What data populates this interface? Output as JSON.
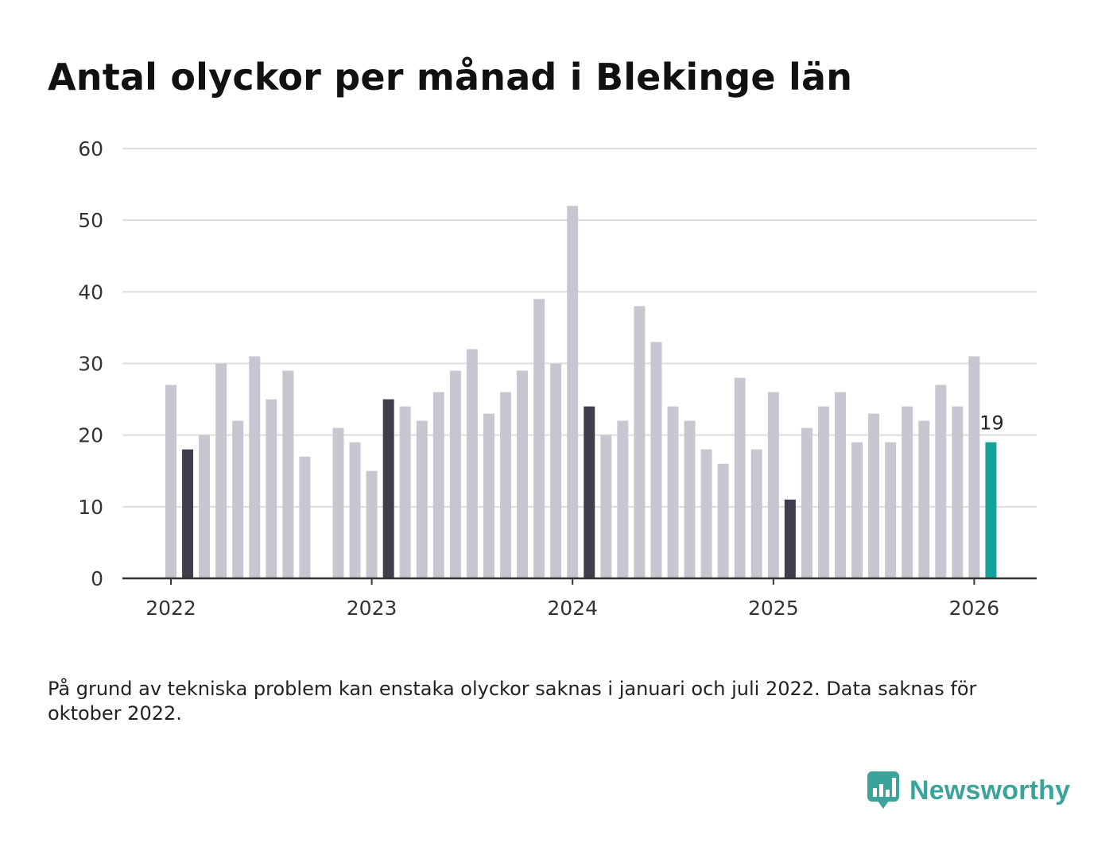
{
  "title": "Antal olyckor per månad i Blekinge län",
  "note": "På grund av tekniska problem kan enstaka olyckor saknas i januari och juli 2022. Data saknas för oktober 2022.",
  "brand": {
    "name": "Newsworthy",
    "icon": "newsworthy-logo-icon",
    "color": "#3aa49a"
  },
  "colors": {
    "bar_default": "#c8c7d1",
    "bar_highlight": "#3e3e4c",
    "bar_latest": "#13a39a",
    "grid": "#dddddd",
    "baseline": "#333333"
  },
  "chart_data": {
    "type": "bar",
    "title": "Antal olyckor per månad i Blekinge län",
    "xlabel": "",
    "ylabel": "",
    "ylim": [
      0,
      60
    ],
    "yticks": [
      0,
      10,
      20,
      30,
      40,
      50,
      60
    ],
    "grid": true,
    "xticks": [
      {
        "label": "2022",
        "month_index": 0
      },
      {
        "label": "2023",
        "month_index": 12
      },
      {
        "label": "2024",
        "month_index": 24
      },
      {
        "label": "2025",
        "month_index": 36
      },
      {
        "label": "2026",
        "month_index": 48
      }
    ],
    "highlight_note": "February of each year is highlighted dark; the latest month is highlighted teal and labelled",
    "last_value_label": "19",
    "categories": [
      "2022-01",
      "2022-02",
      "2022-03",
      "2022-04",
      "2022-05",
      "2022-06",
      "2022-07",
      "2022-08",
      "2022-09",
      "2022-10",
      "2022-11",
      "2022-12",
      "2023-01",
      "2023-02",
      "2023-03",
      "2023-04",
      "2023-05",
      "2023-06",
      "2023-07",
      "2023-08",
      "2023-09",
      "2023-10",
      "2023-11",
      "2023-12",
      "2024-01",
      "2024-02",
      "2024-03",
      "2024-04",
      "2024-05",
      "2024-06",
      "2024-07",
      "2024-08",
      "2024-09",
      "2024-10",
      "2024-11",
      "2024-12",
      "2025-01",
      "2025-02",
      "2025-03",
      "2025-04",
      "2025-05",
      "2025-06",
      "2025-07",
      "2025-08",
      "2025-09",
      "2025-10",
      "2025-11",
      "2025-12",
      "2026-01",
      "2026-02"
    ],
    "values": [
      27,
      18,
      20,
      30,
      22,
      31,
      25,
      29,
      17,
      null,
      21,
      19,
      15,
      25,
      24,
      22,
      26,
      29,
      32,
      23,
      26,
      29,
      39,
      30,
      52,
      24,
      20,
      22,
      38,
      33,
      24,
      22,
      18,
      16,
      28,
      18,
      26,
      11,
      21,
      24,
      26,
      19,
      23,
      19,
      24,
      22,
      27,
      24,
      31,
      19
    ],
    "highlight": [
      "default",
      "dark",
      "default",
      "default",
      "default",
      "default",
      "default",
      "default",
      "default",
      "default",
      "default",
      "default",
      "default",
      "dark",
      "default",
      "default",
      "default",
      "default",
      "default",
      "default",
      "default",
      "default",
      "default",
      "default",
      "default",
      "dark",
      "default",
      "default",
      "default",
      "default",
      "default",
      "default",
      "default",
      "default",
      "default",
      "default",
      "default",
      "dark",
      "default",
      "default",
      "default",
      "default",
      "default",
      "default",
      "default",
      "default",
      "default",
      "default",
      "default",
      "latest"
    ]
  }
}
